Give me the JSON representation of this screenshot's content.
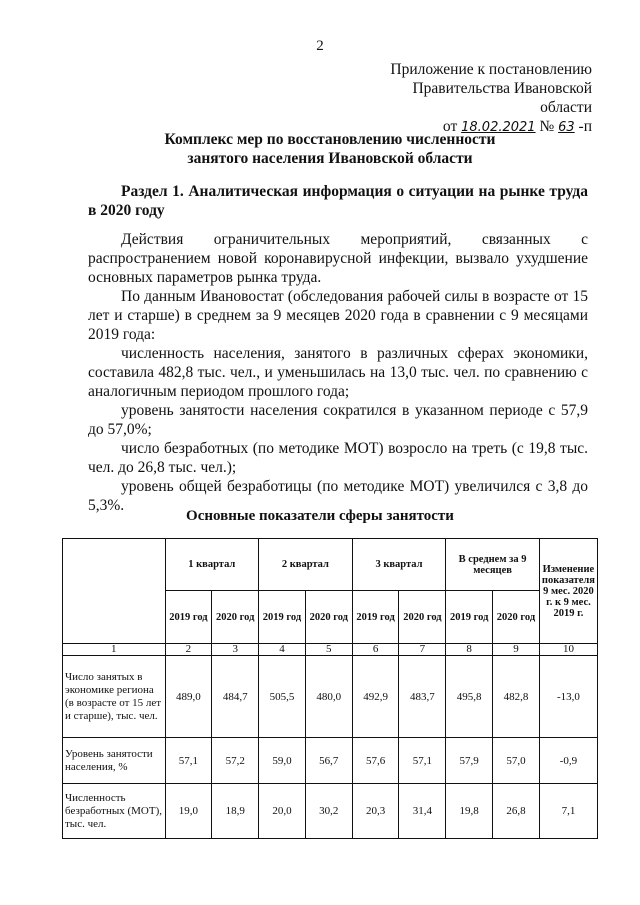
{
  "page_number": "2",
  "appendix": {
    "line1": "Приложение к постановлению",
    "line2": "Правительства Ивановской области",
    "from": "от",
    "date": "18.02.2021",
    "no": "№",
    "number": "63",
    "suffix": "-п"
  },
  "title": {
    "line1": "Комплекс мер по восстановлению численности",
    "line2": "занятого населения Ивановской области"
  },
  "section": "Раздел 1. Аналитическая информация о ситуации на рынке труда в 2020 году",
  "paragraphs": [
    "Действия ограничительных мероприятий, связанных с распространением новой коронавирусной инфекции, вызвало ухудшение основных параметров рынка труда.",
    "По данным Ивановостат (обследования рабочей силы в возрасте от 15 лет и старше) в среднем за 9 месяцев 2020 года в сравнении с 9 месяцами 2019 года:",
    "численность населения, занятого в различных сферах экономики, составила 482,8 тыс. чел., и уменьшилась на 13,0 тыс. чел. по сравнению с аналогичным периодом прошлого года;",
    "уровень занятости населения сократился в указанном периоде с 57,9 до 57,0%;",
    "число безработных (по методике МОТ) возросло на треть (с 19,8 тыс. чел. до 26,8 тыс. чел.);",
    "уровень общей безработицы (по методике МОТ) увеличился с 3,8 до 5,3%."
  ],
  "table": {
    "title": "Основные показатели сферы занятости",
    "groups": [
      "1 квартал",
      "2 квартал",
      "3 квартал",
      "В среднем за 9 месяцев"
    ],
    "change_header": "Изменение показателя 9 мес. 2020 г. к 9 мес. 2019 г.",
    "years": [
      "2019 год",
      "2020 год",
      "2019 год",
      "2020 год",
      "2019 год",
      "2020 год",
      "2019 год",
      "2020 год"
    ],
    "index": [
      "1",
      "2",
      "3",
      "4",
      "5",
      "6",
      "7",
      "8",
      "9",
      "10"
    ],
    "rows": [
      {
        "label": "Число занятых в экономике региона (в возрасте от 15 лет и старше), тыс. чел.",
        "values": [
          "489,0",
          "484,7",
          "505,5",
          "480,0",
          "492,9",
          "483,7",
          "495,8",
          "482,8",
          "-13,0"
        ]
      },
      {
        "label": "Уровень занятости населения, %",
        "values": [
          "57,1",
          "57,2",
          "59,0",
          "56,7",
          "57,6",
          "57,1",
          "57,9",
          "57,0",
          "-0,9"
        ]
      },
      {
        "label": "Численность безработных (МОТ), тыс. чел.",
        "values": [
          "19,0",
          "18,9",
          "20,0",
          "30,2",
          "20,3",
          "31,4",
          "19,8",
          "26,8",
          "7,1"
        ]
      }
    ]
  }
}
